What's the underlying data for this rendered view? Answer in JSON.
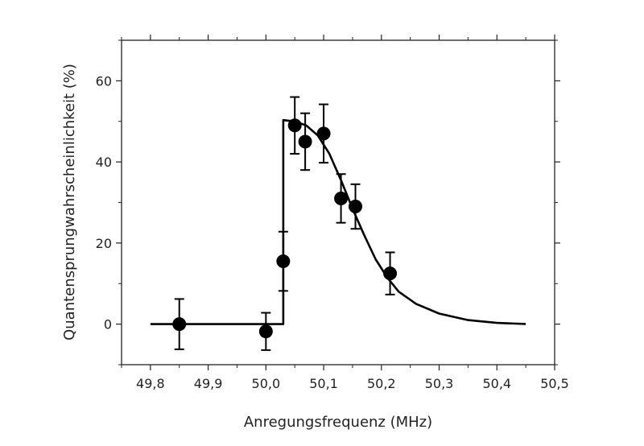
{
  "chart_data": {
    "type": "scatter",
    "title": "",
    "xlabel": "Anregungsfrequenz (MHz)",
    "ylabel": "Quantensprungwahrscheinlichkeit (%)",
    "xlim": [
      49.75,
      50.5
    ],
    "ylim": [
      -10,
      70
    ],
    "x_ticks": [
      49.8,
      49.9,
      50.0,
      50.1,
      50.2,
      50.3,
      50.4,
      50.5
    ],
    "x_tick_labels": [
      "49,8",
      "49,9",
      "50,0",
      "50,1",
      "50,2",
      "50,3",
      "50,4",
      "50,5"
    ],
    "y_ticks": [
      0,
      20,
      40,
      60
    ],
    "y_tick_labels": [
      "0",
      "20",
      "40",
      "60"
    ],
    "grid": false,
    "legend": "none",
    "series": [
      {
        "kind": "points-with-errorbars",
        "points": [
          {
            "x": 49.85,
            "y": 0.0,
            "err": 6.2
          },
          {
            "x": 50.0,
            "y": -1.8,
            "err": 4.6
          },
          {
            "x": 50.03,
            "y": 15.5,
            "err": 7.3
          },
          {
            "x": 50.05,
            "y": 49.0,
            "err": 7.0
          },
          {
            "x": 50.068,
            "y": 45.0,
            "err": 7.0
          },
          {
            "x": 50.1,
            "y": 47.0,
            "err": 7.2
          },
          {
            "x": 50.13,
            "y": 31.0,
            "err": 6.0
          },
          {
            "x": 50.155,
            "y": 29.0,
            "err": 5.5
          },
          {
            "x": 50.215,
            "y": 12.5,
            "err": 5.2
          }
        ]
      },
      {
        "kind": "fit-curve",
        "points": [
          [
            49.8,
            0.0
          ],
          [
            50.03,
            0.0
          ],
          [
            50.03,
            50.3
          ],
          [
            50.05,
            50.0
          ],
          [
            50.07,
            49.0
          ],
          [
            50.09,
            46.5
          ],
          [
            50.11,
            42.0
          ],
          [
            50.13,
            35.5
          ],
          [
            50.15,
            28.5
          ],
          [
            50.17,
            22.0
          ],
          [
            50.19,
            16.0
          ],
          [
            50.21,
            11.5
          ],
          [
            50.23,
            8.0
          ],
          [
            50.26,
            5.0
          ],
          [
            50.3,
            2.6
          ],
          [
            50.35,
            1.0
          ],
          [
            50.4,
            0.3
          ],
          [
            50.45,
            0.05
          ]
        ]
      }
    ],
    "colors": {
      "ink": "#000000",
      "axis": "#222222"
    }
  }
}
